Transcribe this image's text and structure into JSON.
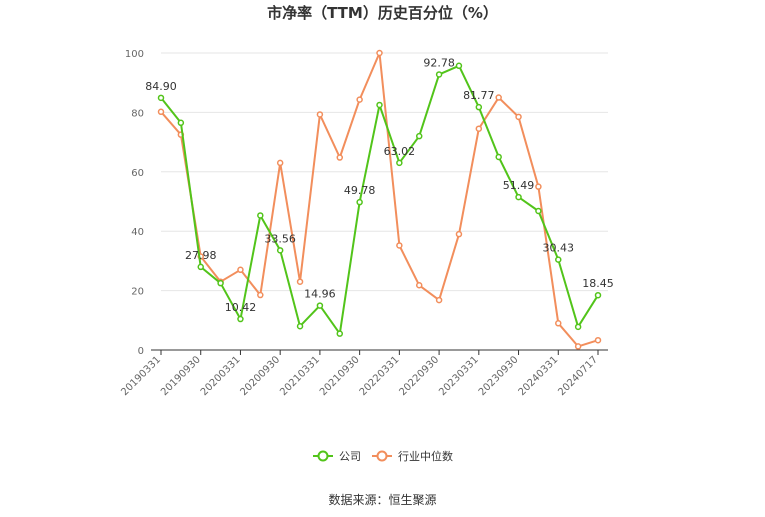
{
  "chart_data": {
    "type": "line",
    "title": "市净率（TTM）历史百分位（%）",
    "source": "数据来源：恒生聚源",
    "ylim": [
      0,
      100
    ],
    "yticks": [
      0,
      20,
      40,
      60,
      80,
      100
    ],
    "grid": true,
    "legend_position": "bottom",
    "x": [
      "20190331",
      "20190630",
      "20190930",
      "20191231",
      "20200331",
      "20200630",
      "20200930",
      "20201231",
      "20210331",
      "20210630",
      "20210930",
      "20211231",
      "20220331",
      "20220630",
      "20220930",
      "20221231",
      "20230331",
      "20230630",
      "20230930",
      "20231231",
      "20240331",
      "20240630",
      "20240717"
    ],
    "xtick_labels": [
      "20190331",
      "20190930",
      "20200331",
      "20200930",
      "20210331",
      "20210930",
      "20220331",
      "20220930",
      "20230331",
      "20230930",
      "20240331",
      "20240717"
    ],
    "series": [
      {
        "name": "公司",
        "color": "#52c41a",
        "values": [
          84.9,
          76.5,
          27.98,
          22.5,
          10.42,
          45.3,
          33.56,
          8.0,
          14.96,
          5.5,
          49.78,
          82.5,
          63.02,
          72.0,
          92.78,
          95.7,
          81.77,
          65.0,
          51.49,
          46.8,
          30.43,
          7.8,
          18.45
        ],
        "labels": {
          "0": "84.90",
          "2": "27.98",
          "4": "10.42",
          "6": "33.56",
          "8": "14.96",
          "10": "49.78",
          "12": "63.02",
          "14": "92.78",
          "16": "81.77",
          "18": "51.49",
          "20": "30.43",
          "22": "18.45"
        }
      },
      {
        "name": "行业中位数",
        "color": "#f28e5c",
        "values": [
          80.2,
          72.5,
          31.5,
          23.0,
          27.0,
          18.5,
          63.0,
          23.0,
          79.3,
          64.8,
          84.3,
          100.0,
          35.2,
          21.8,
          16.8,
          39.0,
          74.5,
          85.0,
          78.5,
          55.0,
          9.0,
          1.2,
          3.3
        ]
      }
    ]
  }
}
